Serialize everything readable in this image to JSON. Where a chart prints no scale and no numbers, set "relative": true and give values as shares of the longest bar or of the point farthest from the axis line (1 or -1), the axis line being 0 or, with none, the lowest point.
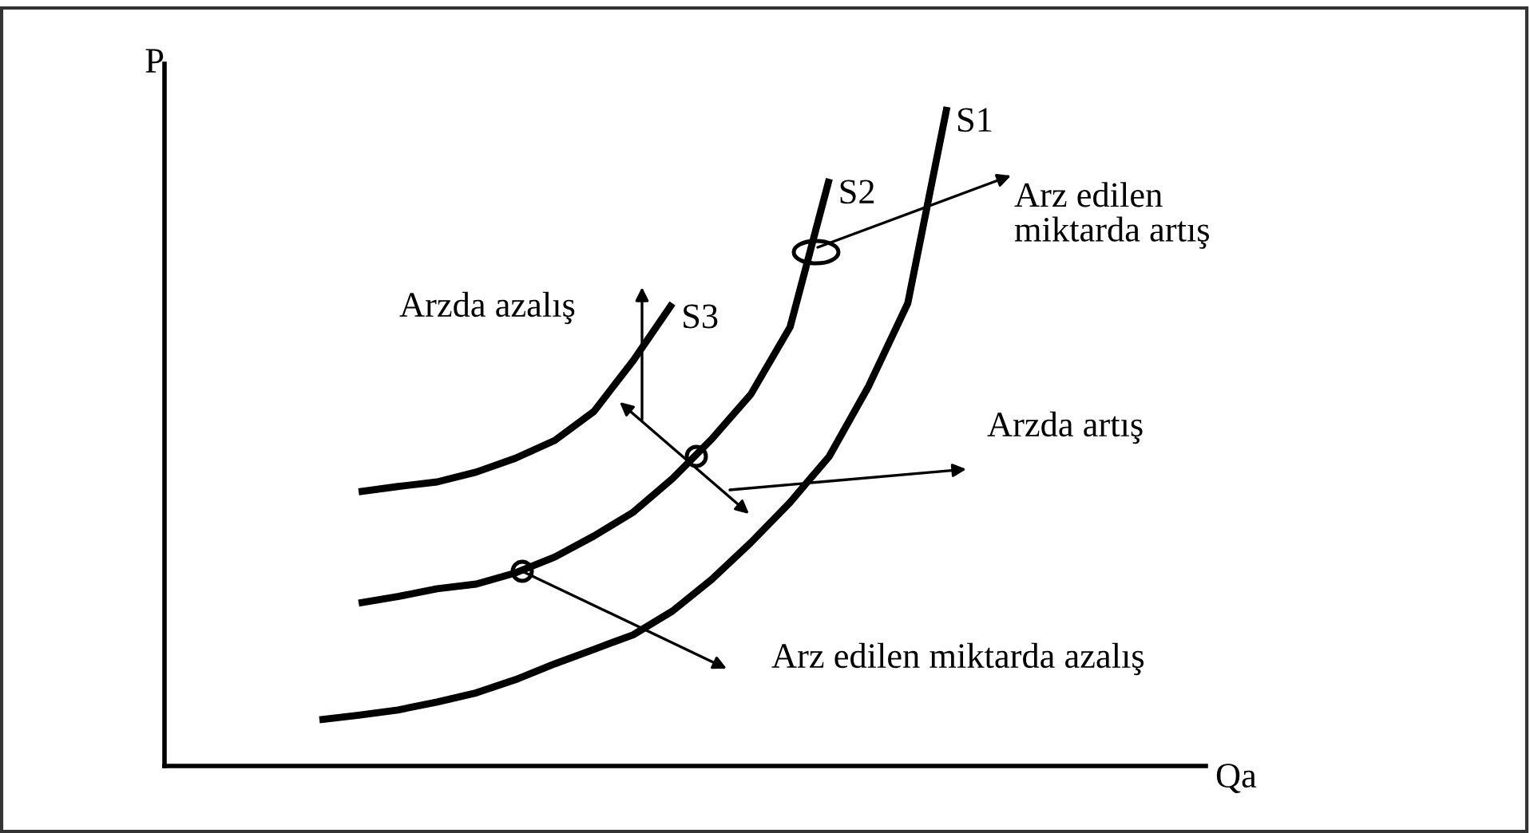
{
  "chart_data": {
    "type": "line",
    "relative": true,
    "ylabel": "P",
    "categories": [
      null,
      null,
      null,
      null,
      null,
      null,
      null,
      null,
      null,
      null,
      null,
      null,
      null,
      null,
      null,
      null,
      null
    ],
    "series": [
      {
        "name": "S1",
        "color": "#000000",
        "values": [
          0.07,
          0.077,
          0.085,
          0.097,
          0.111,
          0.131,
          0.155,
          0.177,
          0.199,
          0.235,
          0.283,
          0.339,
          0.4,
          0.47,
          0.576,
          0.702,
          1
        ]
      },
      {
        "name": "S2",
        "color": "#000000",
        "values": [
          null,
          0.247,
          0.257,
          0.269,
          0.276,
          0.293,
          0.317,
          0.349,
          0.385,
          0.436,
          0.496,
          0.564,
          0.666,
          0.891,
          null,
          null,
          null
        ]
      },
      {
        "name": "S3",
        "color": "#000000",
        "values": [
          null,
          0.416,
          0.424,
          0.431,
          0.446,
          0.467,
          0.494,
          0.538,
          0.615,
          0.702,
          null,
          null,
          null,
          null,
          null,
          null,
          null
        ]
      }
    ],
    "annotations": [
      "Arz edilen\nmiktarda artış",
      "Arzda azalış",
      "Arzda artış",
      "Arz edilen miktarda azalış",
      "Qa"
    ]
  }
}
